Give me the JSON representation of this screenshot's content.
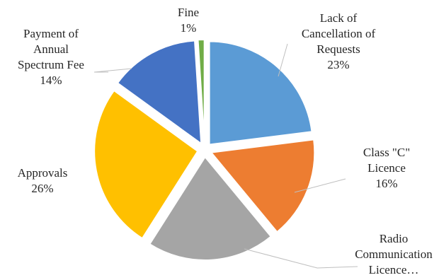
{
  "chart_data": {
    "type": "pie",
    "exploded": true,
    "start_angle_deg": 0,
    "direction": "clockwise",
    "slices": [
      {
        "label": "Lack of Cancellation of Requests",
        "lines": [
          "Lack of",
          "Cancellation of",
          "Requests"
        ],
        "value": 23,
        "pct_label": "23%",
        "color": "#5B9BD5"
      },
      {
        "label": "Class \"C\" Licence",
        "lines": [
          "Class \"C\"",
          "Licence"
        ],
        "value": 16,
        "pct_label": "16%",
        "color": "#ED7D31"
      },
      {
        "label": "Radio Communication Licence…",
        "lines": [
          "Radio",
          "Communication",
          "Licence…"
        ],
        "value": 20,
        "pct_label": "",
        "color": "#A5A5A5"
      },
      {
        "label": "Approvals",
        "lines": [
          "Approvals"
        ],
        "value": 26,
        "pct_label": "26%",
        "color": "#FFC000"
      },
      {
        "label": "Payment of Annual Spectrum Fee",
        "lines": [
          "Payment of",
          "Annual",
          "Spectrum Fee"
        ],
        "value": 14,
        "pct_label": "14%",
        "color": "#4472C4"
      },
      {
        "label": "Fine",
        "lines": [
          "Fine"
        ],
        "value": 1,
        "pct_label": "1%",
        "color": "#70AD47"
      }
    ]
  }
}
